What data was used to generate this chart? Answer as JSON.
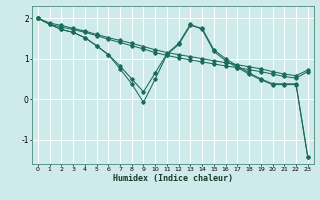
{
  "xlabel": "Humidex (Indice chaleur)",
  "bg_color": "#ceeaea",
  "grid_color": "#ffffff",
  "line_color": "#1a6b5a",
  "xlim": [
    -0.5,
    23.5
  ],
  "ylim": [
    -1.6,
    2.3
  ],
  "yticks": [
    -1,
    0,
    1,
    2
  ],
  "xticks": [
    0,
    1,
    2,
    3,
    4,
    5,
    6,
    7,
    8,
    9,
    10,
    11,
    12,
    13,
    14,
    15,
    16,
    17,
    18,
    19,
    20,
    21,
    22,
    23
  ],
  "series": [
    {
      "x": [
        0,
        1,
        2,
        3,
        4,
        5,
        6,
        7,
        8,
        9,
        10,
        11,
        12,
        13,
        14,
        15,
        16,
        17,
        18,
        19,
        20,
        21,
        22,
        23
      ],
      "y": [
        2.0,
        1.88,
        1.82,
        1.75,
        1.68,
        1.6,
        1.52,
        1.45,
        1.38,
        1.3,
        1.22,
        1.15,
        1.1,
        1.05,
        1.0,
        0.95,
        0.9,
        0.85,
        0.8,
        0.75,
        0.68,
        0.62,
        0.58,
        0.72
      ]
    },
    {
      "x": [
        0,
        1,
        2,
        3,
        4,
        5,
        6,
        7,
        8,
        9,
        10,
        11,
        12,
        13,
        14,
        15,
        16,
        17,
        18,
        19,
        20,
        21,
        22,
        23
      ],
      "y": [
        2.0,
        1.85,
        1.78,
        1.72,
        1.65,
        1.57,
        1.48,
        1.4,
        1.32,
        1.24,
        1.15,
        1.08,
        1.02,
        0.97,
        0.92,
        0.87,
        0.82,
        0.78,
        0.73,
        0.68,
        0.62,
        0.56,
        0.52,
        0.68
      ]
    },
    {
      "x": [
        0,
        1,
        2,
        3,
        4,
        5,
        6,
        7,
        8,
        9,
        10,
        11,
        12,
        13,
        14,
        15,
        16,
        17,
        18,
        19,
        20,
        21,
        22,
        23
      ],
      "y": [
        2.0,
        1.85,
        1.72,
        1.65,
        1.52,
        1.32,
        1.1,
        0.75,
        0.38,
        -0.08,
        0.5,
        1.1,
        1.35,
        1.82,
        1.75,
        1.22,
        1.0,
        0.82,
        0.65,
        0.5,
        0.38,
        0.38,
        0.38,
        -1.42
      ]
    },
    {
      "x": [
        0,
        1,
        2,
        3,
        4,
        5,
        6,
        7,
        8,
        9,
        10,
        11,
        12,
        13,
        14,
        15,
        16,
        17,
        18,
        19,
        20,
        21,
        22,
        23
      ],
      "y": [
        2.0,
        1.85,
        1.72,
        1.65,
        1.52,
        1.32,
        1.1,
        0.82,
        0.5,
        0.18,
        0.65,
        1.12,
        1.38,
        1.85,
        1.72,
        1.18,
        0.95,
        0.78,
        0.62,
        0.48,
        0.36,
        0.36,
        0.36,
        -1.42
      ]
    }
  ]
}
